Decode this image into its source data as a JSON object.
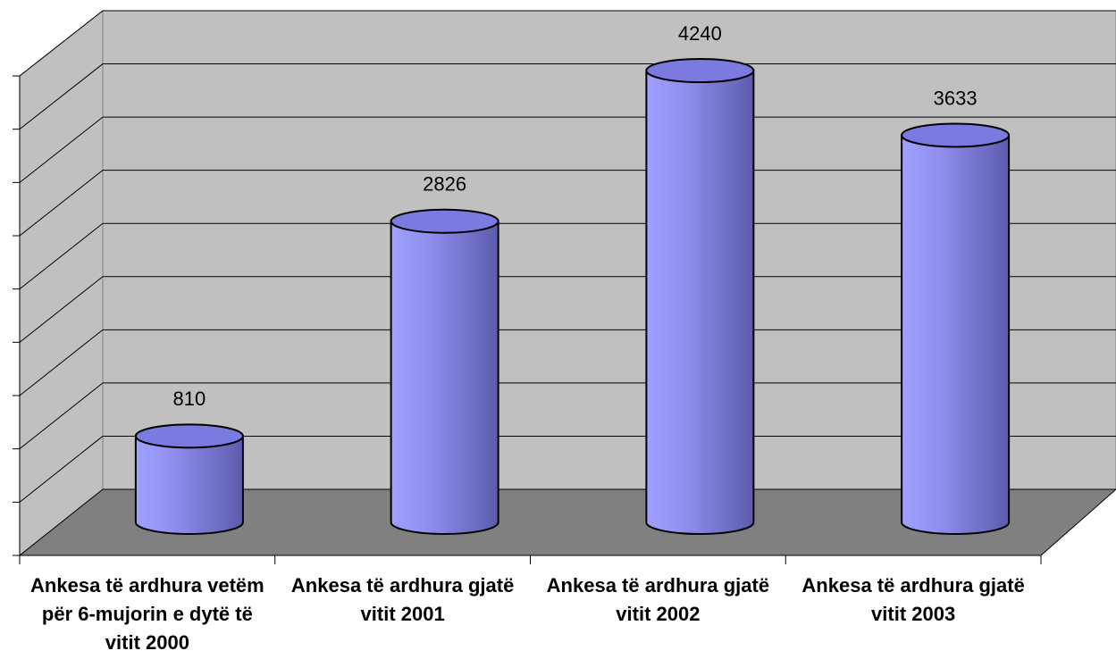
{
  "chart_data": {
    "type": "bar3d",
    "categories": [
      "Ankesa të ardhura vetëm për 6-mujorin e dytë të vitit 2000",
      "Ankesa të ardhura gjatë vitit 2001",
      "Ankesa të ardhura gjatë vitit 2002",
      "Ankesa të ardhura gjatë vitit 2003"
    ],
    "values": [
      810,
      2826,
      4240,
      3633
    ],
    "color": "#9999ff",
    "ylim": [
      0,
      4500
    ],
    "yticks": [
      0,
      500,
      1000,
      1500,
      2000,
      2500,
      3000,
      3500,
      4000,
      4500
    ],
    "grid": true
  }
}
